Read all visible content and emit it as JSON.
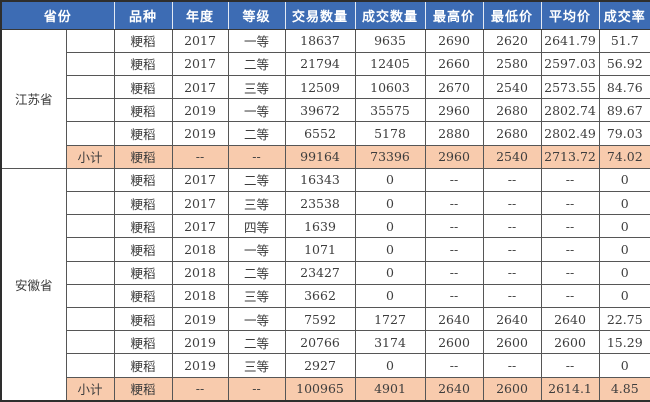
{
  "table": {
    "columns": [
      "省份",
      "品种",
      "年度",
      "等级",
      "交易数量",
      "成交数量",
      "最高价",
      "最低价",
      "平均价",
      "成交率"
    ],
    "groups": [
      {
        "province": "江苏省",
        "rows": [
          {
            "variety": "粳稻",
            "year": "2017",
            "grade": "一等",
            "trade_qty": "18637",
            "deal_qty": "9635",
            "max_price": "2690",
            "min_price": "2620",
            "avg_price": "2641.79",
            "deal_rate": "51.7"
          },
          {
            "variety": "粳稻",
            "year": "2017",
            "grade": "二等",
            "trade_qty": "21794",
            "deal_qty": "12405",
            "max_price": "2660",
            "min_price": "2580",
            "avg_price": "2597.03",
            "deal_rate": "56.92"
          },
          {
            "variety": "粳稻",
            "year": "2017",
            "grade": "三等",
            "trade_qty": "12509",
            "deal_qty": "10603",
            "max_price": "2670",
            "min_price": "2540",
            "avg_price": "2573.55",
            "deal_rate": "84.76"
          },
          {
            "variety": "粳稻",
            "year": "2019",
            "grade": "一等",
            "trade_qty": "39672",
            "deal_qty": "35575",
            "max_price": "2960",
            "min_price": "2680",
            "avg_price": "2802.74",
            "deal_rate": "89.67"
          },
          {
            "variety": "粳稻",
            "year": "2019",
            "grade": "二等",
            "trade_qty": "6552",
            "deal_qty": "5178",
            "max_price": "2880",
            "min_price": "2680",
            "avg_price": "2802.49",
            "deal_rate": "79.03"
          }
        ],
        "subtotal": {
          "label": "小计",
          "variety": "粳稻",
          "year": "--",
          "grade": "--",
          "trade_qty": "99164",
          "deal_qty": "73396",
          "max_price": "2960",
          "min_price": "2540",
          "avg_price": "2713.72",
          "deal_rate": "74.02"
        }
      },
      {
        "province": "安徽省",
        "rows": [
          {
            "variety": "粳稻",
            "year": "2017",
            "grade": "二等",
            "trade_qty": "16343",
            "deal_qty": "0",
            "max_price": "--",
            "min_price": "--",
            "avg_price": "--",
            "deal_rate": "0"
          },
          {
            "variety": "粳稻",
            "year": "2017",
            "grade": "三等",
            "trade_qty": "23538",
            "deal_qty": "0",
            "max_price": "--",
            "min_price": "--",
            "avg_price": "--",
            "deal_rate": "0"
          },
          {
            "variety": "粳稻",
            "year": "2017",
            "grade": "四等",
            "trade_qty": "1639",
            "deal_qty": "0",
            "max_price": "--",
            "min_price": "--",
            "avg_price": "--",
            "deal_rate": "0"
          },
          {
            "variety": "粳稻",
            "year": "2018",
            "grade": "一等",
            "trade_qty": "1071",
            "deal_qty": "0",
            "max_price": "--",
            "min_price": "--",
            "avg_price": "--",
            "deal_rate": "0"
          },
          {
            "variety": "粳稻",
            "year": "2018",
            "grade": "二等",
            "trade_qty": "23427",
            "deal_qty": "0",
            "max_price": "--",
            "min_price": "--",
            "avg_price": "--",
            "deal_rate": "0"
          },
          {
            "variety": "粳稻",
            "year": "2018",
            "grade": "三等",
            "trade_qty": "3662",
            "deal_qty": "0",
            "max_price": "--",
            "min_price": "--",
            "avg_price": "--",
            "deal_rate": "0"
          },
          {
            "variety": "粳稻",
            "year": "2019",
            "grade": "一等",
            "trade_qty": "7592",
            "deal_qty": "1727",
            "max_price": "2640",
            "min_price": "2640",
            "avg_price": "2640",
            "deal_rate": "22.75"
          },
          {
            "variety": "粳稻",
            "year": "2019",
            "grade": "二等",
            "trade_qty": "20766",
            "deal_qty": "3174",
            "max_price": "2600",
            "min_price": "2600",
            "avg_price": "2600",
            "deal_rate": "15.29"
          },
          {
            "variety": "粳稻",
            "year": "2019",
            "grade": "三等",
            "trade_qty": "2927",
            "deal_qty": "0",
            "max_price": "--",
            "min_price": "--",
            "avg_price": "--",
            "deal_rate": "0"
          }
        ],
        "subtotal": {
          "label": "小计",
          "variety": "粳稻",
          "year": "--",
          "grade": "--",
          "trade_qty": "100965",
          "deal_qty": "4901",
          "max_price": "2640",
          "min_price": "2600",
          "avg_price": "2614.1",
          "deal_rate": "4.85"
        }
      }
    ]
  },
  "colors": {
    "header_bg": "#3d6cb4",
    "header_text": "#ffffff",
    "subtotal_bg": "#f8cbad",
    "grid_border": "#565656",
    "body_text": "#3d3d3d"
  }
}
